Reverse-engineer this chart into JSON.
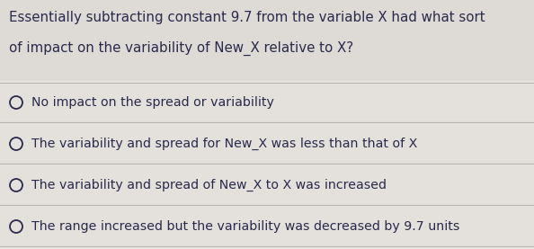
{
  "question_line1": "Essentially subtracting constant 9.7 from the variable X had what sort",
  "question_line2": "of impact on the variability of New_X relative to X?",
  "options": [
    "No impact on the spread or variability",
    "The variability and spread for New_X was less than that of X",
    "The variability and spread of New_X to X was increased",
    "The range increased but the variability was decreased by 9.7 units"
  ],
  "bg_color": "#e8e4e0",
  "question_bg": "#dedad6",
  "option_bg": "#e4e0dc",
  "text_color": "#2a2a4a",
  "divider_color": "#b8b4b0",
  "font_size_question": 10.8,
  "font_size_options": 10.2,
  "circle_color": "#2a2a4a"
}
